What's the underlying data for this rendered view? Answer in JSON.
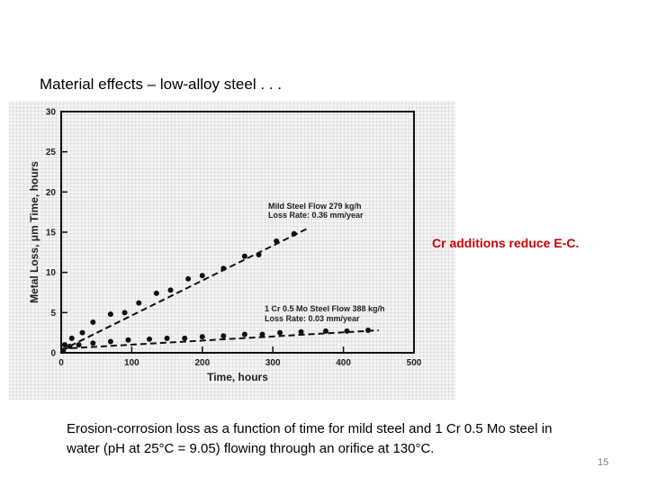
{
  "slide": {
    "title": "Material effects – low-alloy steel . . .",
    "note": "Cr additions reduce E-C.",
    "caption": "Erosion-corrosion loss as a function of time for mild steel and 1 Cr 0.5 Mo steel in water (pH at 25°C = 9.05) flowing through an orifice at 130°C.",
    "page_number": "15"
  },
  "chart_data": {
    "type": "scatter",
    "xlabel": "Time, hours",
    "ylabel": "Metal Loss, μm Time, hours",
    "xlim": [
      0,
      500
    ],
    "ylim": [
      0,
      30
    ],
    "x_ticks": [
      0,
      100,
      200,
      300,
      400,
      500
    ],
    "y_ticks": [
      0,
      5,
      10,
      15,
      20,
      25,
      30
    ],
    "grid": false,
    "series": [
      {
        "name": "Mild Steel Flow 279 kg/h",
        "loss_rate": "Loss Rate: 0.36 mm/year",
        "color": "#111111",
        "points": [
          [
            5,
            1.0
          ],
          [
            15,
            1.8
          ],
          [
            30,
            2.5
          ],
          [
            45,
            3.8
          ],
          [
            70,
            4.8
          ],
          [
            90,
            5.0
          ],
          [
            110,
            6.2
          ],
          [
            135,
            7.4
          ],
          [
            155,
            7.8
          ],
          [
            180,
            9.2
          ],
          [
            200,
            9.6
          ],
          [
            230,
            10.5
          ],
          [
            260,
            12.0
          ],
          [
            280,
            12.2
          ],
          [
            305,
            13.9
          ],
          [
            330,
            14.8
          ]
        ],
        "fit": [
          [
            0,
            0.3
          ],
          [
            350,
            15.5
          ]
        ]
      },
      {
        "name": "1 Cr 0.5 Mo Steel Flow 388 kg/h",
        "loss_rate": "Loss Rate: 0.03 mm/year",
        "color": "#111111",
        "points": [
          [
            3,
            0.3
          ],
          [
            12,
            0.8
          ],
          [
            25,
            1.0
          ],
          [
            45,
            1.2
          ],
          [
            70,
            1.4
          ],
          [
            95,
            1.6
          ],
          [
            125,
            1.7
          ],
          [
            150,
            1.8
          ],
          [
            175,
            1.8
          ],
          [
            200,
            2.0
          ],
          [
            230,
            2.1
          ],
          [
            260,
            2.3
          ],
          [
            285,
            2.3
          ],
          [
            310,
            2.5
          ],
          [
            340,
            2.6
          ],
          [
            375,
            2.7
          ],
          [
            405,
            2.7
          ],
          [
            435,
            2.8
          ]
        ],
        "fit": [
          [
            0,
            0.5
          ],
          [
            450,
            2.8
          ]
        ]
      }
    ]
  }
}
